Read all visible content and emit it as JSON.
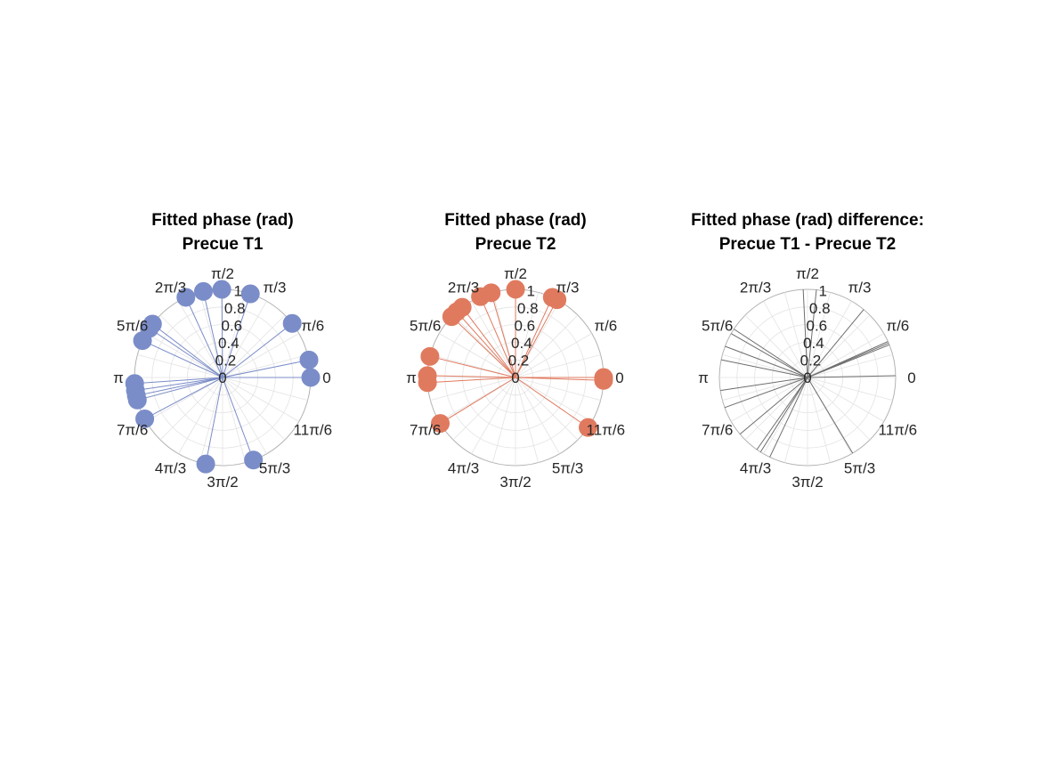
{
  "figure": {
    "background": "#ffffff"
  },
  "chart_data": [
    {
      "type": "polar",
      "title": "Fitted phase (rad)",
      "subtitle": "Precue T1",
      "theta_unit": "rad",
      "r_lim": [
        0,
        1
      ],
      "r_ticks": [
        "0",
        "0.2",
        "0.4",
        "0.6",
        "0.8",
        "1"
      ],
      "theta_tick_labels": [
        "0",
        "π/6",
        "π/3",
        "π/2",
        "2π/3",
        "5π/6",
        "π",
        "7π/6",
        "4π/3",
        "3π/2",
        "5π/3",
        "11π/6"
      ],
      "grid": true,
      "marker": "filled-circle",
      "series": [
        {
          "color": "#7b8dc8",
          "points": [
            {
              "theta": 0.0,
              "r": 1.0
            },
            {
              "theta": 0.2,
              "r": 1.0
            },
            {
              "theta": 0.66,
              "r": 1.0
            },
            {
              "theta": 1.25,
              "r": 1.0
            },
            {
              "theta": 1.58,
              "r": 1.0
            },
            {
              "theta": 1.79,
              "r": 1.0
            },
            {
              "theta": 2.0,
              "r": 1.0
            },
            {
              "theta": 2.49,
              "r": 1.0
            },
            {
              "theta": 2.55,
              "r": 1.0
            },
            {
              "theta": 2.71,
              "r": 1.0
            },
            {
              "theta": 3.21,
              "r": 1.0
            },
            {
              "theta": 3.29,
              "r": 1.0
            },
            {
              "theta": 3.35,
              "r": 1.0
            },
            {
              "theta": 3.4,
              "r": 1.0
            },
            {
              "theta": 3.63,
              "r": 1.0
            },
            {
              "theta": 4.52,
              "r": 1.0
            },
            {
              "theta": 5.07,
              "r": 1.0
            }
          ]
        }
      ]
    },
    {
      "type": "polar",
      "title": "Fitted phase (rad)",
      "subtitle": "Precue T2",
      "theta_unit": "rad",
      "r_lim": [
        0,
        1
      ],
      "r_ticks": [
        "0",
        "0.2",
        "0.4",
        "0.6",
        "0.8",
        "1"
      ],
      "theta_tick_labels": [
        "0",
        "π/6",
        "π/3",
        "π/2",
        "2π/3",
        "5π/6",
        "π",
        "7π/6",
        "4π/3",
        "3π/2",
        "5π/3",
        "11π/6"
      ],
      "grid": true,
      "marker": "filled-circle",
      "series": [
        {
          "color": "#e07a5f",
          "points": [
            {
              "theta": 0.0,
              "r": 1.0
            },
            {
              "theta": 1.57,
              "r": 1.0
            },
            {
              "theta": 1.14,
              "r": 1.0
            },
            {
              "theta": 1.08,
              "r": 1.0
            },
            {
              "theta": 1.85,
              "r": 1.0
            },
            {
              "theta": 1.98,
              "r": 1.0
            },
            {
              "theta": 2.22,
              "r": 1.0
            },
            {
              "theta": 2.3,
              "r": 1.0
            },
            {
              "theta": 2.38,
              "r": 1.0
            },
            {
              "theta": 2.9,
              "r": 1.0
            },
            {
              "theta": 3.12,
              "r": 1.0
            },
            {
              "theta": 3.2,
              "r": 1.0
            },
            {
              "theta": 3.69,
              "r": 1.0
            },
            {
              "theta": 5.68,
              "r": 1.0
            },
            {
              "theta": 6.25,
              "r": 1.0
            }
          ]
        }
      ]
    },
    {
      "type": "polar",
      "title": "Fitted phase (rad) difference:",
      "subtitle": "Precue T1 - Precue T2",
      "theta_unit": "rad",
      "r_lim": [
        0,
        1
      ],
      "r_ticks": [
        "0",
        "0.2",
        "0.4",
        "0.6",
        "0.8",
        "1"
      ],
      "theta_tick_labels": [
        "0",
        "π/6",
        "π/3",
        "π/2",
        "2π/3",
        "5π/6",
        "π",
        "7π/6",
        "4π/3",
        "3π/2",
        "5π/3",
        "11π/6"
      ],
      "grid": true,
      "marker": "none",
      "series": [
        {
          "color": "#6e6e6e",
          "points": [
            {
              "theta": 0.02,
              "r": 1.0
            },
            {
              "theta": 0.38,
              "r": 1.0
            },
            {
              "theta": 0.4,
              "r": 1.0
            },
            {
              "theta": 0.42,
              "r": 1.0
            },
            {
              "theta": 0.88,
              "r": 1.0
            },
            {
              "theta": 1.47,
              "r": 1.0
            },
            {
              "theta": 1.62,
              "r": 1.0
            },
            {
              "theta": 2.56,
              "r": 1.0
            },
            {
              "theta": 2.62,
              "r": 1.0
            },
            {
              "theta": 2.78,
              "r": 1.0
            },
            {
              "theta": 2.94,
              "r": 1.0
            },
            {
              "theta": 3.29,
              "r": 1.0
            },
            {
              "theta": 3.49,
              "r": 1.0
            },
            {
              "theta": 3.84,
              "r": 1.0
            },
            {
              "theta": 4.1,
              "r": 1.0
            },
            {
              "theta": 4.15,
              "r": 1.0
            },
            {
              "theta": 4.27,
              "r": 1.0
            },
            {
              "theta": 5.25,
              "r": 1.0
            }
          ]
        }
      ]
    }
  ]
}
